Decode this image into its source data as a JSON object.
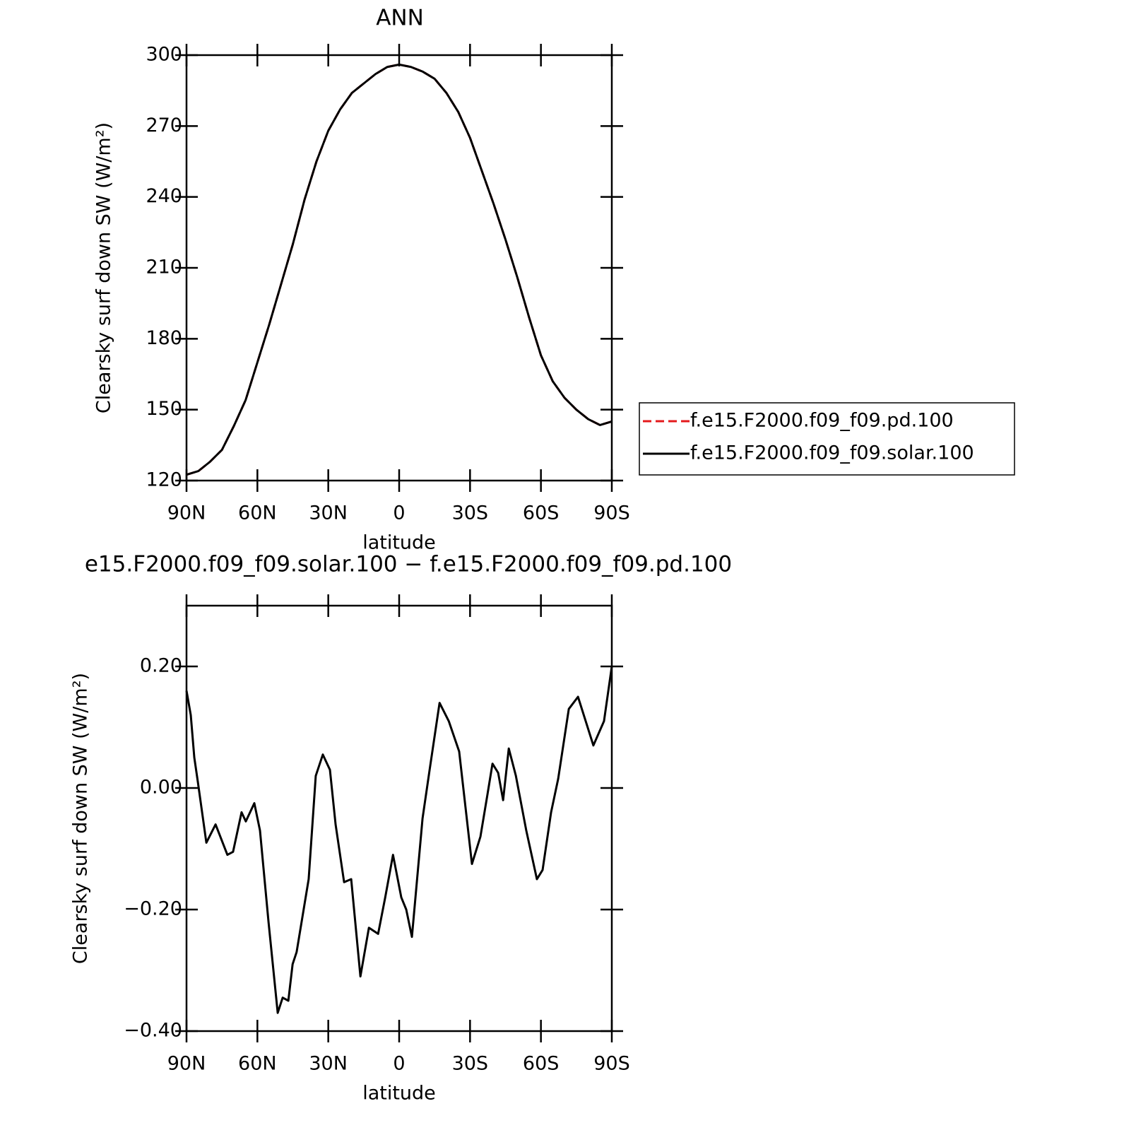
{
  "chart_data": [
    {
      "type": "line",
      "title": "ANN",
      "xlabel": "latitude",
      "ylabel": "Clearsky surf down SW (W/m²)",
      "x": [
        90,
        85,
        80,
        75,
        70,
        65,
        60,
        55,
        50,
        45,
        40,
        35,
        30,
        25,
        20,
        15,
        10,
        5,
        0,
        -5,
        -10,
        -15,
        -20,
        -25,
        -30,
        -35,
        -40,
        -45,
        -50,
        -55,
        -60,
        -65,
        -70,
        -75,
        -80,
        -85,
        -90
      ],
      "series": [
        {
          "name": "f.e15.F2000.f09_f09.pd.100",
          "color": "#e41a1c",
          "dash": true,
          "values": [
            122.5,
            124,
            128,
            133,
            143,
            154,
            170,
            186,
            203,
            220,
            239,
            255,
            268,
            277,
            284,
            288,
            292,
            295,
            296,
            295,
            293,
            290,
            284,
            276,
            265,
            251,
            237,
            222,
            206,
            189,
            173,
            162,
            155,
            150,
            146,
            143.5,
            145
          ]
        },
        {
          "name": "f.e15.F2000.f09_f09.solar.100",
          "color": "#000000",
          "dash": false,
          "values": [
            122.5,
            124,
            128,
            133,
            143,
            154,
            170,
            186,
            203,
            220,
            239,
            255,
            268,
            277,
            284,
            288,
            292,
            295,
            296,
            295,
            293,
            290,
            284,
            276,
            265,
            251,
            237,
            222,
            206,
            189,
            173,
            162,
            155,
            150,
            146,
            143.5,
            145
          ]
        }
      ],
      "xlim": [
        90,
        -90
      ],
      "xticks": [
        {
          "value": 90,
          "label": "90N"
        },
        {
          "value": 60,
          "label": "60N"
        },
        {
          "value": 30,
          "label": "30N"
        },
        0,
        {
          "value": -30,
          "label": "30S"
        },
        {
          "value": -60,
          "label": "60S"
        },
        {
          "value": -90,
          "label": "90S"
        }
      ],
      "ylim": [
        120,
        300
      ],
      "yticks": [
        120,
        150,
        180,
        210,
        240,
        270,
        300
      ],
      "legend": "outside-right"
    },
    {
      "type": "line",
      "title": "e15.F2000.f09_f09.solar.100 − f.e15.F2000.f09_f09.pd.100",
      "xlabel": "latitude",
      "ylabel": "Clearsky surf down SW (W/m²)",
      "x": [
        90,
        88.2,
        86.7,
        85.2,
        81.6,
        77.7,
        72.7,
        70.3,
        66.7,
        64.9,
        61.3,
        58.9,
        55.3,
        51.4,
        49.3,
        46.9,
        45.1,
        43.4,
        38.3,
        35.3,
        32.3,
        29.3,
        26.9,
        23.3,
        20.3,
        16.4,
        12.8,
        8.9,
        5.9,
        2.6,
        -0.9,
        -3,
        -5.4,
        -9.9,
        -12.9,
        -17.1,
        -21,
        -25.4,
        -30.8,
        -34.4,
        -37.4,
        -39.5,
        -41.9,
        -44,
        -46.4,
        -49.4,
        -53.8,
        -58.3,
        -60.7,
        -64.3,
        -67.3,
        -71.8,
        -75.7,
        -82.2,
        -86.7,
        -90
      ],
      "values": [
        0.16,
        0.12,
        0.05,
        0.01,
        -0.09,
        -0.06,
        -0.11,
        -0.105,
        -0.04,
        -0.055,
        -0.025,
        -0.07,
        -0.22,
        -0.37,
        -0.345,
        -0.35,
        -0.29,
        -0.27,
        -0.15,
        0.02,
        0.055,
        0.03,
        -0.06,
        -0.155,
        -0.15,
        -0.31,
        -0.23,
        -0.24,
        -0.18,
        -0.11,
        -0.18,
        -0.2,
        -0.245,
        -0.05,
        0.03,
        0.14,
        0.11,
        0.06,
        -0.125,
        -0.08,
        -0.01,
        0.04,
        0.025,
        -0.02,
        0.065,
        0.02,
        -0.07,
        -0.15,
        -0.135,
        -0.04,
        0.015,
        0.13,
        0.15,
        0.07,
        0.11,
        0.2
      ],
      "color": "#000000",
      "xlim": [
        90,
        -90
      ],
      "xticks": [
        {
          "value": 90,
          "label": "90N"
        },
        {
          "value": 60,
          "label": "60N"
        },
        {
          "value": 30,
          "label": "30N"
        },
        0,
        {
          "value": -30,
          "label": "30S"
        },
        {
          "value": -60,
          "label": "60S"
        },
        {
          "value": -90,
          "label": "90S"
        }
      ],
      "ylim": [
        -0.4,
        0.3
      ],
      "yticks": [
        {
          "value": -0.4,
          "label": "−0.40"
        },
        {
          "value": -0.2,
          "label": "−0.20"
        },
        {
          "value": 0,
          "label": "0.00"
        },
        {
          "value": 0.2,
          "label": "0.20"
        }
      ]
    }
  ]
}
